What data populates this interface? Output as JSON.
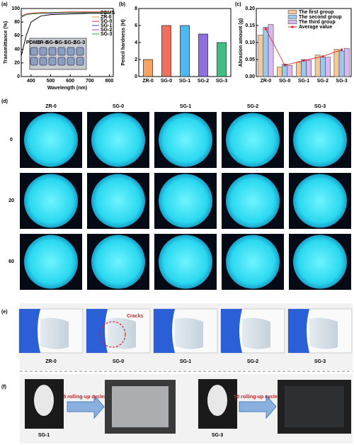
{
  "panel_labels": [
    "(a)",
    "(b)",
    "(c)",
    "(d)",
    "(e)",
    "(f)"
  ],
  "chart_data": [
    {
      "type": "line",
      "xlabel": "Wavelength (nm)",
      "ylabel": "Transmittance (%)",
      "x": [
        350,
        375,
        400,
        450,
        500,
        600,
        700,
        800
      ],
      "series": [
        {
          "name": "PDMS",
          "color": "#000000",
          "values": [
            30,
            60,
            80,
            89,
            91,
            92,
            93,
            93
          ]
        },
        {
          "name": "ZR-0",
          "color": "#e8a040",
          "values": [
            88,
            92,
            93,
            94,
            94,
            94,
            94,
            94
          ]
        },
        {
          "name": "SG-0",
          "color": "#e03030",
          "values": [
            89,
            92,
            93,
            94,
            94,
            95,
            95,
            95
          ]
        },
        {
          "name": "SG-1",
          "color": "#3050e0",
          "values": [
            88,
            91,
            92,
            93,
            93,
            94,
            94,
            94
          ]
        },
        {
          "name": "SG-2",
          "color": "#c030c0",
          "values": [
            87,
            91,
            92,
            93,
            93,
            94,
            94,
            94
          ]
        },
        {
          "name": "SG-3",
          "color": "#30a040",
          "values": [
            88,
            91,
            92,
            93,
            94,
            94,
            94,
            94
          ]
        }
      ],
      "xlim": [
        350,
        820
      ],
      "ylim": [
        0,
        100
      ],
      "xticks": [
        400,
        500,
        600,
        700,
        800
      ],
      "yticks": [
        0,
        20,
        40,
        60,
        80,
        100
      ],
      "inset_labels": [
        "PDMS",
        "ZR-0",
        "SG-0",
        "SG-1",
        "SG-2",
        "SG-3"
      ]
    },
    {
      "type": "bar",
      "ylabel": "Pencil hardness (H)",
      "categories": [
        "ZR-0",
        "SG-0",
        "SG-1",
        "SG-2",
        "SG-3"
      ],
      "values": [
        2,
        6,
        6,
        5,
        4
      ],
      "colors": [
        "#f4a460",
        "#f07060",
        "#50b8f0",
        "#9070e0",
        "#40c080"
      ],
      "ylim": [
        0,
        8
      ],
      "yticks": [
        0,
        2,
        4,
        6,
        8
      ]
    },
    {
      "type": "bar",
      "ylabel": "Abrasion amount (g)",
      "categories": [
        "ZR-0",
        "SG-0",
        "SG-1",
        "SG-2",
        "SG-3"
      ],
      "series": [
        {
          "name": "The first group",
          "color": "#f5c89a",
          "values": [
            0.122,
            0.028,
            0.042,
            0.063,
            0.08
          ]
        },
        {
          "name": "The second group",
          "color": "#9cc8f0",
          "values": [
            0.145,
            0.037,
            0.05,
            0.058,
            0.075
          ]
        },
        {
          "name": "The third group",
          "color": "#d8b8f0",
          "values": [
            0.153,
            0.033,
            0.048,
            0.057,
            0.083
          ]
        },
        {
          "name": "Average value",
          "color": "#e02020",
          "type": "line",
          "values": [
            0.14,
            0.033,
            0.047,
            0.059,
            0.079
          ]
        }
      ],
      "ylim": [
        0,
        0.2
      ],
      "yticks": [
        {
          "value": 0,
          "label": "0.00"
        },
        {
          "value": 0.05,
          "label": "0.05"
        },
        {
          "value": 0.1,
          "label": "0.10"
        },
        {
          "value": 0.15,
          "label": "0.15"
        },
        {
          "value": 0.2,
          "label": "0.20"
        }
      ]
    }
  ],
  "abrasion_photos": {
    "columns": [
      "ZR-0",
      "SG-0",
      "SG-1",
      "SG-2",
      "SG-3"
    ],
    "rows": [
      "0",
      "20",
      "60"
    ]
  },
  "bending": {
    "samples": [
      "ZR-0",
      "SG-0",
      "SG-1",
      "SG-2",
      "SG-3"
    ],
    "annotation": "Cracks"
  },
  "rolling": [
    {
      "sample": "SG-1",
      "cycles": "5 rolling-up cycles"
    },
    {
      "sample": "SG-3",
      "cycles": "50 rolling-up cycles"
    }
  ]
}
